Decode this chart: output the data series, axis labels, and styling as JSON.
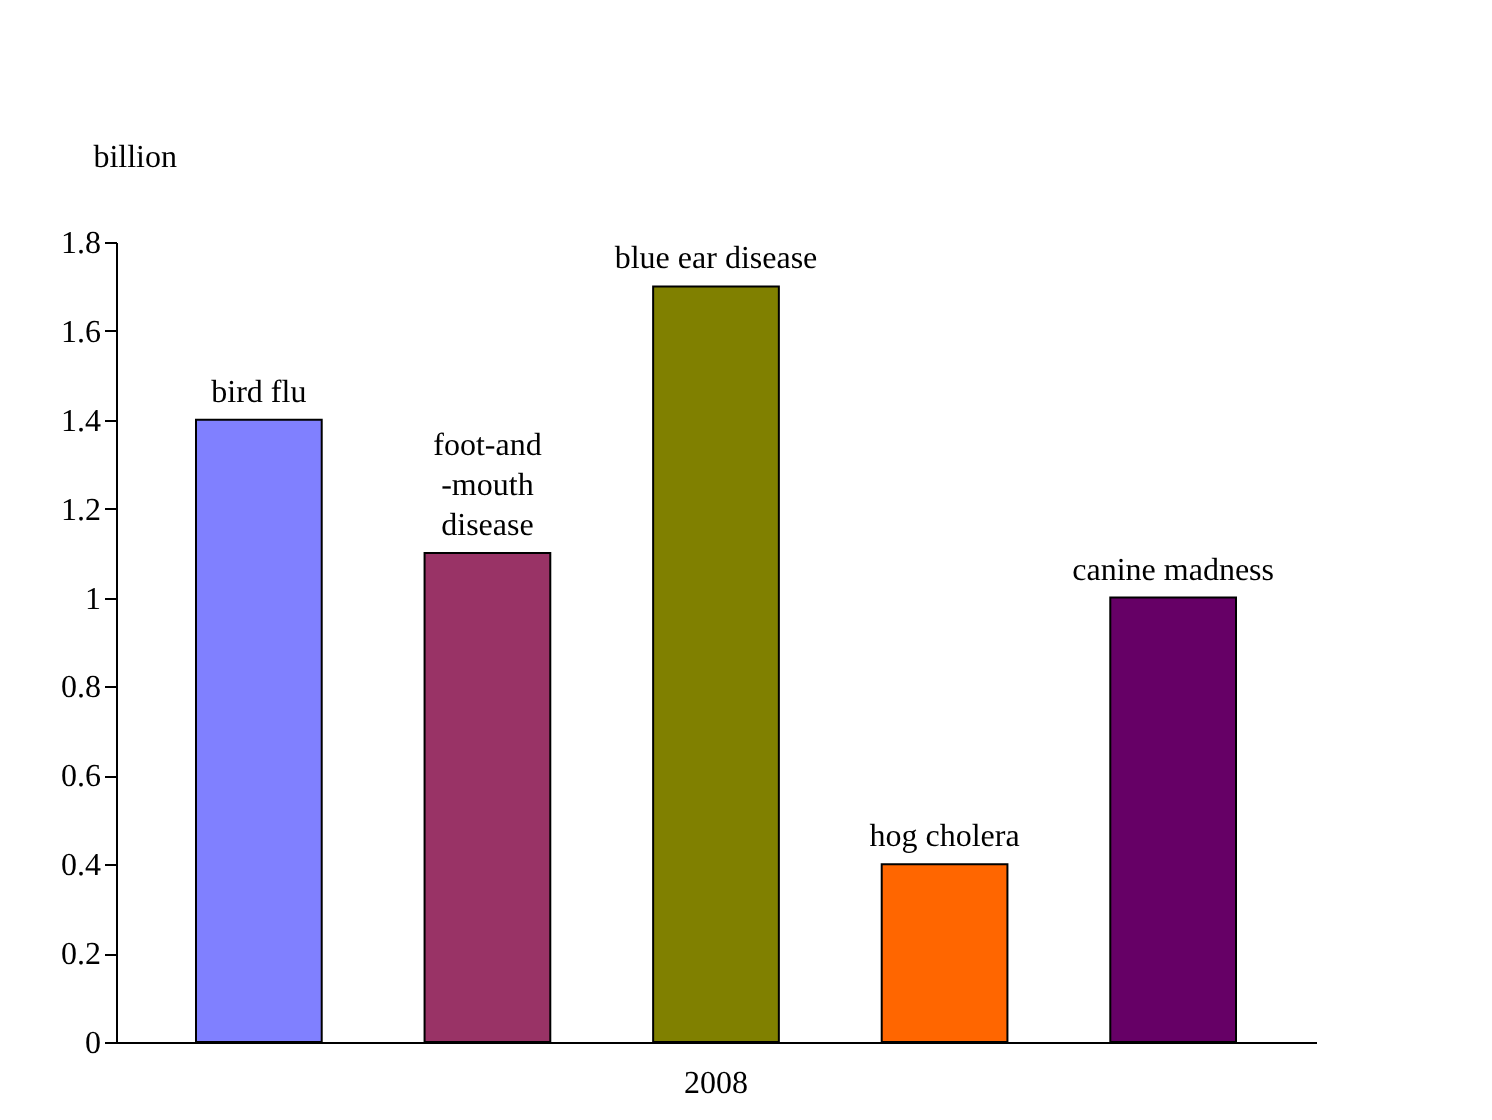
{
  "chart_data": {
    "type": "bar",
    "ylabel": "billion",
    "categories": [
      "2008"
    ],
    "series": [
      {
        "name": "bird flu",
        "color": "#8080ff",
        "values": [
          1.4
        ]
      },
      {
        "name": "foot-and-mouth disease",
        "color": "#993366",
        "values": [
          1.1
        ]
      },
      {
        "name": "blue ear disease",
        "color": "#808000",
        "values": [
          1.7
        ]
      },
      {
        "name": "hog cholera",
        "color": "#ff6600",
        "values": [
          0.4
        ]
      },
      {
        "name": "canine madness",
        "color": "#660066",
        "values": [
          1.0
        ]
      }
    ],
    "ylim": [
      0,
      1.8
    ],
    "yticks": [
      0,
      0.2,
      0.4,
      0.6,
      0.8,
      1,
      1.2,
      1.4,
      1.6,
      1.8
    ],
    "grid": false,
    "legend": false
  }
}
